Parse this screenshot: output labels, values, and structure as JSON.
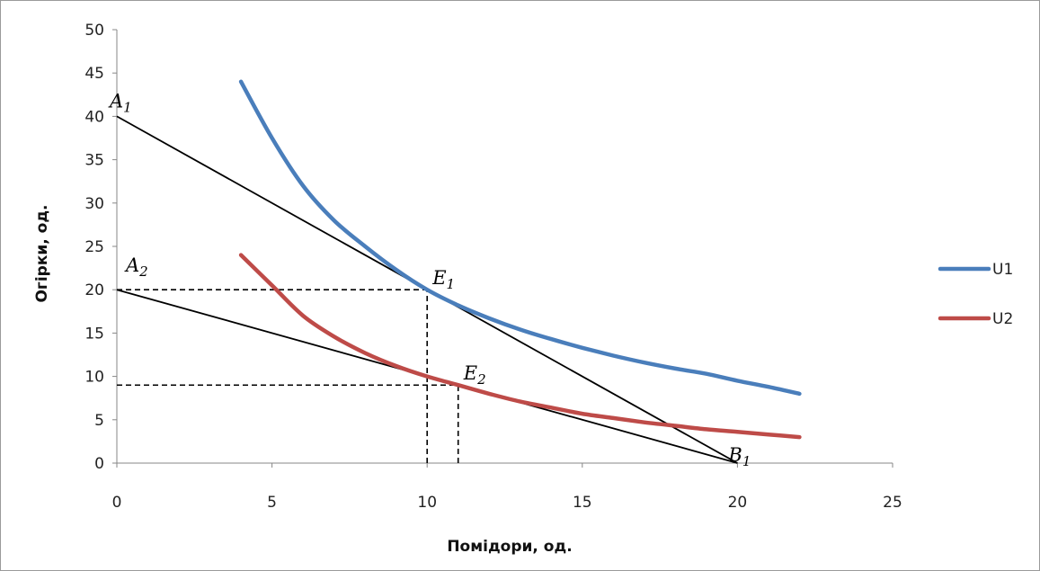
{
  "chart_data": {
    "type": "line",
    "xlabel": "Помідори, од.",
    "ylabel": "Огірки, од.",
    "xlim": [
      0,
      25
    ],
    "ylim": [
      0,
      50
    ],
    "x_ticks": [
      "0",
      "5",
      "10",
      "15",
      "20",
      "25"
    ],
    "y_ticks": [
      "0",
      "5",
      "10",
      "15",
      "20",
      "25",
      "30",
      "35",
      "40",
      "45",
      "50"
    ],
    "grid": false,
    "legend_position": "right",
    "series": [
      {
        "name": "U1",
        "color": "#4a7ebb",
        "x": [
          4,
          5,
          6,
          7,
          8,
          9,
          10,
          11,
          12,
          13,
          14,
          15,
          16,
          17,
          18,
          19,
          20,
          21,
          22
        ],
        "y": [
          44,
          37.5,
          32,
          28,
          25,
          22.3,
          20,
          18.2,
          16.7,
          15.4,
          14.3,
          13.3,
          12.4,
          11.6,
          10.9,
          10.3,
          9.5,
          8.8,
          8
        ]
      },
      {
        "name": "U2",
        "color": "#be4b48",
        "x": [
          4,
          5,
          6,
          7,
          8,
          9,
          10,
          11,
          12,
          13,
          14,
          15,
          16,
          17,
          18,
          19,
          20,
          21,
          22
        ],
        "y": [
          24,
          20.5,
          17,
          14.6,
          12.7,
          11.2,
          10,
          9,
          8,
          7.1,
          6.4,
          5.7,
          5.2,
          4.7,
          4.3,
          3.9,
          3.6,
          3.3,
          3
        ]
      }
    ],
    "budget_lines": [
      {
        "from": [
          0,
          40
        ],
        "to": [
          20,
          0
        ],
        "color": "#000000"
      },
      {
        "from": [
          0,
          20
        ],
        "to": [
          20,
          0
        ],
        "color": "#000000"
      }
    ],
    "guide_lines": [
      {
        "from": [
          0,
          20
        ],
        "to": [
          10,
          20
        ]
      },
      {
        "from": [
          10,
          0
        ],
        "to": [
          10,
          20
        ]
      },
      {
        "from": [
          0,
          9
        ],
        "to": [
          11,
          9
        ]
      },
      {
        "from": [
          11,
          0
        ],
        "to": [
          11,
          9
        ]
      }
    ],
    "annotations": [
      {
        "main": "A",
        "sub": "1",
        "x": 0,
        "y": 40
      },
      {
        "main": "A",
        "sub": "2",
        "x": 0,
        "y": 20
      },
      {
        "main": "E",
        "sub": "1",
        "x": 10,
        "y": 20
      },
      {
        "main": "E",
        "sub": "2",
        "x": 11,
        "y": 9
      },
      {
        "main": "B",
        "sub": "1",
        "x": 20,
        "y": 0
      }
    ]
  }
}
